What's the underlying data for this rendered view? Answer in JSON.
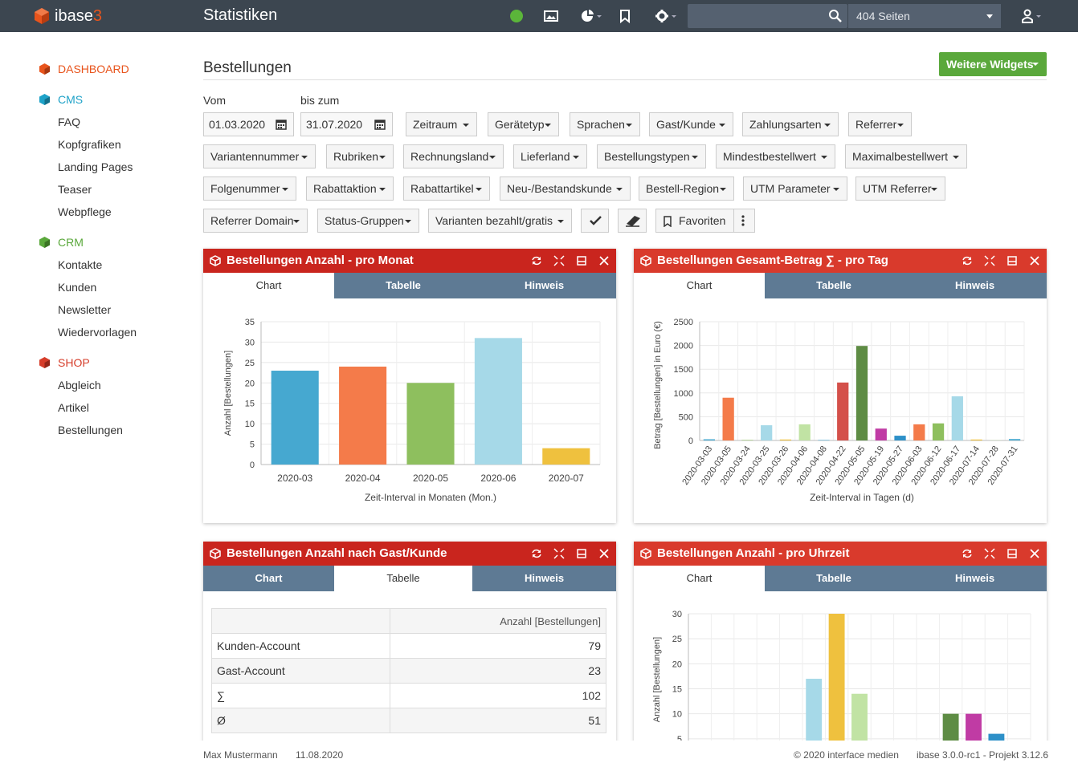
{
  "app": {
    "logo_name": "ibase",
    "logo_suffix": "3",
    "page_title": "Statistiken",
    "pages_select": "404 Seiten"
  },
  "colors": {
    "topbar": "#3c4650",
    "accent": "#e8541c",
    "cms": "#1ea2c8",
    "crm": "#5aa83b",
    "panel_head": "#c9251e",
    "tabs": "#5e7a94"
  },
  "sidebar": {
    "dashboard": "DASHBOARD",
    "cms": {
      "label": "CMS",
      "items": [
        "FAQ",
        "Kopfgrafiken",
        "Landing Pages",
        "Teaser",
        "Webpflege"
      ]
    },
    "crm": {
      "label": "CRM",
      "items": [
        "Kontakte",
        "Kunden",
        "Newsletter",
        "Wiedervorlagen"
      ]
    },
    "shop": {
      "label": "SHOP",
      "items": [
        "Abgleich",
        "Artikel",
        "Bestellungen"
      ]
    }
  },
  "main": {
    "heading": "Bestellungen",
    "widgets_button": "Weitere Widgets",
    "vom_label": "Vom",
    "bis_label": "bis zum",
    "date_from": "01.03.2020",
    "date_to": "31.07.2020",
    "filters_row1": [
      "Zeitraum",
      "Gerätetyp",
      "Sprachen",
      "Gast/Kunde",
      "Zahlungsarten",
      "Referrer"
    ],
    "filters_row2": [
      "Variantennummer",
      "Rubriken",
      "Rechnungsland",
      "Lieferland",
      "Bestellungstypen",
      "Mindestbestellwert",
      "Maximalbestellwert"
    ],
    "filters_row3": [
      "Folgenummer",
      "Rabattaktion",
      "Rabattartikel",
      "Neu-/Bestandskunde",
      "Bestell-Region",
      "UTM Parameter",
      "UTM Referrer"
    ],
    "filters_row4": [
      "Referrer Domain",
      "Status-Gruppen",
      "Varianten bezahlt/gratis"
    ],
    "favorites": "Favoriten"
  },
  "tabs": {
    "chart": "Chart",
    "table": "Tabelle",
    "note": "Hinweis"
  },
  "panels": {
    "p1": {
      "title": "Bestellungen Anzahl - pro Monat"
    },
    "p2": {
      "title": "Bestellungen Gesamt-Betrag ∑ - pro Tag"
    },
    "p3": {
      "title": "Bestellungen Anzahl nach Gast/Kunde",
      "table_header": "Anzahl [Bestellungen]",
      "rows": [
        {
          "label": "Kunden-Account",
          "value": "79"
        },
        {
          "label": "Gast-Account",
          "value": "23"
        },
        {
          "label": "∑",
          "value": "102"
        },
        {
          "label": "Ø",
          "value": "51"
        }
      ]
    },
    "p4": {
      "title": "Bestellungen Anzahl - pro Uhrzeit"
    }
  },
  "chart_data": [
    {
      "type": "bar",
      "categories": [
        "2020-03",
        "2020-04",
        "2020-05",
        "2020-06",
        "2020-07"
      ],
      "values": [
        23,
        24,
        20,
        31,
        4
      ],
      "colors": [
        "#46a8d0",
        "#f47b4a",
        "#8ebf5e",
        "#a6d9e8",
        "#efc13e"
      ],
      "xlabel": "Zeit-Interval in Monaten (Mon.)",
      "ylabel": "Anzahl [Bestellungen]",
      "ylim": [
        0,
        35
      ],
      "yticks": [
        "0",
        "5",
        "10",
        "15",
        "20",
        "25",
        "30",
        "35"
      ]
    },
    {
      "type": "bar",
      "categories": [
        "2020-03-03",
        "2020-03-05",
        "2020-03-24",
        "2020-03-25",
        "2020-03-26",
        "2020-04-06",
        "2020-04-08",
        "2020-04-22",
        "2020-05-05",
        "2020-05-19",
        "2020-05-27",
        "2020-06-03",
        "2020-06-12",
        "2020-06-17",
        "2020-07-14",
        "2020-07-28",
        "2020-07-31"
      ],
      "values": [
        25,
        900,
        10,
        320,
        20,
        340,
        10,
        1220,
        1990,
        250,
        100,
        340,
        360,
        930,
        20,
        5,
        30
      ],
      "colors": [
        "#46a8d0",
        "#f47b4a",
        "#8ebf5e",
        "#a6d9e8",
        "#efc13e",
        "#c1e3a4",
        "#46a8d0",
        "#d4504a",
        "#5e8c44",
        "#c03ba4",
        "#2d90c8",
        "#f47b4a",
        "#8ebf5e",
        "#a6d9e8",
        "#efc13e",
        "#c1e3a4",
        "#46a8d0"
      ],
      "xlabel": "Zeit-Interval in Tagen (d)",
      "ylabel": "Betrag [Bestellungen] in Euro (€)",
      "ylim": [
        0,
        2500
      ],
      "yticks": [
        "0",
        "500",
        "1000",
        "1500",
        "2000",
        "2500"
      ]
    },
    {
      "type": "bar",
      "values": [
        0,
        0,
        0,
        0,
        0,
        17,
        30,
        14,
        1,
        2,
        0,
        10,
        10,
        6,
        0
      ],
      "colors": [
        "#46a8d0",
        "#f47b4a",
        "#8ebf5e",
        "#a6d9e8",
        "#efc13e",
        "#a6d9e8",
        "#efc13e",
        "#c1e3a4",
        "#2f5d86",
        "#d4504a",
        "#46a8d0",
        "#5e8c44",
        "#c03ba4",
        "#2d90c8",
        "#f47b4a"
      ],
      "ylabel": "Anzahl [Bestellungen]",
      "ylim": [
        0,
        30
      ],
      "yticks": [
        "5",
        "10",
        "15",
        "20",
        "25",
        "30"
      ]
    }
  ],
  "footer": {
    "user": "Max Mustermann",
    "date": "11.08.2020",
    "copyright": "© 2020 interface medien",
    "version": "ibase 3.0.0-rc1 - Projekt 3.12.6"
  }
}
